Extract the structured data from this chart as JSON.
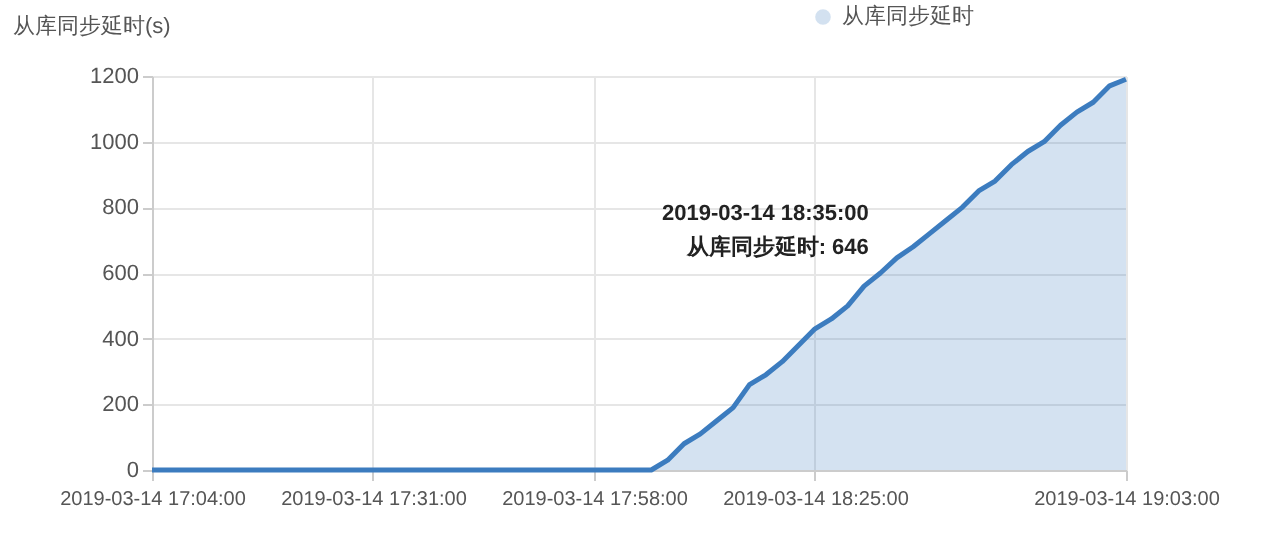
{
  "chart_data": {
    "type": "area",
    "ylabel": "从库同步延时(s)",
    "x": [
      "2019-03-14T17:04",
      "2019-03-14T18:05",
      "2019-03-14T18:07",
      "2019-03-14T18:09",
      "2019-03-14T18:11",
      "2019-03-14T18:13",
      "2019-03-14T18:15",
      "2019-03-14T18:17",
      "2019-03-14T18:19",
      "2019-03-14T18:21",
      "2019-03-14T18:23",
      "2019-03-14T18:25",
      "2019-03-14T18:27",
      "2019-03-14T18:29",
      "2019-03-14T18:31",
      "2019-03-14T18:33",
      "2019-03-14T18:35",
      "2019-03-14T18:37",
      "2019-03-14T18:39",
      "2019-03-14T18:41",
      "2019-03-14T18:43",
      "2019-03-14T18:45",
      "2019-03-14T18:47",
      "2019-03-14T18:49",
      "2019-03-14T18:51",
      "2019-03-14T18:53",
      "2019-03-14T18:55",
      "2019-03-14T18:57",
      "2019-03-14T18:59",
      "2019-03-14T19:01",
      "2019-03-14T19:03"
    ],
    "series": [
      {
        "name": "从库同步延时",
        "color": "#3c7cbf",
        "values": [
          0,
          0,
          30,
          80,
          110,
          150,
          190,
          260,
          290,
          330,
          380,
          430,
          460,
          500,
          560,
          600,
          646,
          680,
          720,
          760,
          800,
          850,
          880,
          930,
          970,
          1000,
          1050,
          1090,
          1120,
          1170,
          1190
        ]
      }
    ],
    "xlim": [
      "2019-03-14T17:04",
      "2019-03-14T19:03"
    ],
    "xticks": [
      {
        "value": "2019-03-14T17:04",
        "label": "2019-03-14 17:04:00"
      },
      {
        "value": "2019-03-14T17:31",
        "label": "2019-03-14 17:31:00"
      },
      {
        "value": "2019-03-14T17:58",
        "label": "2019-03-14 17:58:00"
      },
      {
        "value": "2019-03-14T18:25",
        "label": "2019-03-14 18:25:00"
      },
      {
        "value": "2019-03-14T19:03",
        "label": "2019-03-14 19:03:00"
      }
    ],
    "ylim": [
      0,
      1200
    ],
    "yticks": [
      0,
      200,
      400,
      600,
      800,
      1000,
      1200
    ],
    "grid": true,
    "legend": "top right",
    "marker": "none",
    "line_style": "solid",
    "annotations": [
      {
        "text": "2019-03-14 18:35:00\n从库同步延时: 646",
        "x": "2019-03-14T18:35",
        "y": 646
      }
    ]
  }
}
